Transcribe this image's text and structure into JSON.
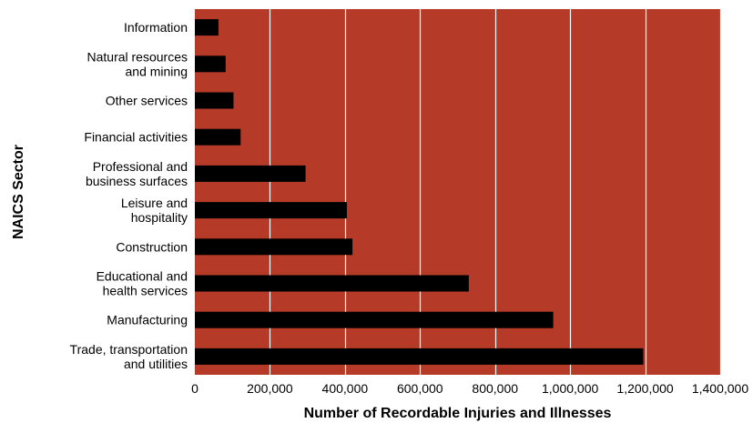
{
  "chart_data": {
    "type": "bar",
    "orientation": "horizontal",
    "categories": [
      [
        "Information"
      ],
      [
        "Natural resources",
        "and mining"
      ],
      [
        "Other services"
      ],
      [
        "Financial activities"
      ],
      [
        "Professional and",
        "business surfaces"
      ],
      [
        "Leisure and",
        "hospitality"
      ],
      [
        "Construction"
      ],
      [
        "Educational and",
        "health services"
      ],
      [
        "Manufacturing"
      ],
      [
        "Trade, transportation",
        "and utilities"
      ]
    ],
    "values": [
      63000,
      82000,
      103000,
      122000,
      295000,
      405000,
      420000,
      730000,
      955000,
      1195000
    ],
    "xlabel": "Number of Recordable Injuries and Illnesses",
    "ylabel": "NAICS Sector",
    "xlim": [
      0,
      1400000
    ],
    "xticks": [
      0,
      200000,
      400000,
      600000,
      800000,
      1000000,
      1200000,
      1400000
    ],
    "xtick_labels": [
      "0",
      "200,000",
      "400,000",
      "600,000",
      "800,000",
      "1,000,000",
      "1,200,000",
      "1,400,000"
    ],
    "grid": "vertical",
    "colors": {
      "plot_background": "#b53a28",
      "bar": "#000000",
      "grid": "#ffffff"
    }
  }
}
